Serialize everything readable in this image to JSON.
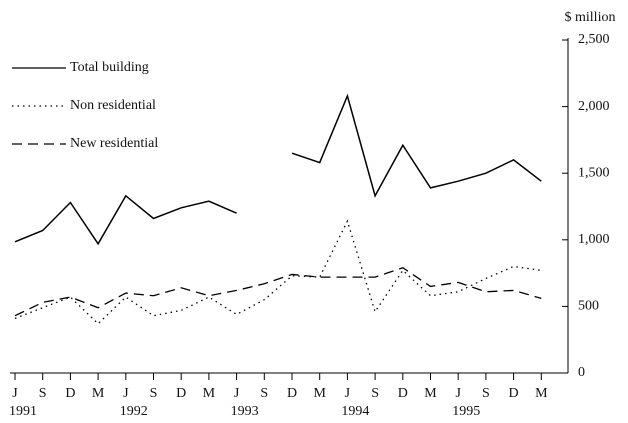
{
  "chart_data": {
    "type": "line",
    "y_axis_label": "$ million",
    "categories": [
      "J",
      "S",
      "D",
      "M",
      "J",
      "S",
      "D",
      "M",
      "J",
      "S",
      "D",
      "M",
      "J",
      "S",
      "D",
      "M",
      "J",
      "S",
      "D",
      "M"
    ],
    "years": [
      "1991",
      null,
      null,
      null,
      "1992",
      null,
      null,
      null,
      "1993",
      null,
      null,
      null,
      "1994",
      null,
      null,
      null,
      "1995",
      null,
      null,
      null
    ],
    "ylim": [
      0,
      2500
    ],
    "yticks": [
      0,
      500,
      {
        "value": 1000,
        "label": "1,000"
      },
      {
        "value": 1500,
        "label": "1,500"
      },
      {
        "value": 2000,
        "label": "2,000"
      },
      {
        "value": 2500,
        "label": "2,500"
      }
    ],
    "series": [
      {
        "name": "Total building",
        "color": "#000000",
        "dash": "solid",
        "values": [
          985,
          1070,
          1280,
          970,
          1330,
          1160,
          1240,
          1290,
          1200,
          null,
          1650,
          1580,
          2080,
          1330,
          1710,
          1390,
          1440,
          1500,
          1600,
          1440
        ]
      },
      {
        "name": "Non residential",
        "color": "#000000",
        "dash": "dotted",
        "values": [
          410,
          490,
          570,
          370,
          570,
          430,
          470,
          570,
          440,
          550,
          730,
          720,
          1140,
          460,
          770,
          580,
          610,
          710,
          800,
          770
        ]
      },
      {
        "name": "New residential",
        "color": "#000000",
        "dash": "dashed",
        "values": [
          430,
          530,
          570,
          490,
          600,
          580,
          640,
          580,
          620,
          670,
          740,
          720,
          720,
          720,
          790,
          650,
          680,
          610,
          620,
          560
        ]
      }
    ]
  }
}
